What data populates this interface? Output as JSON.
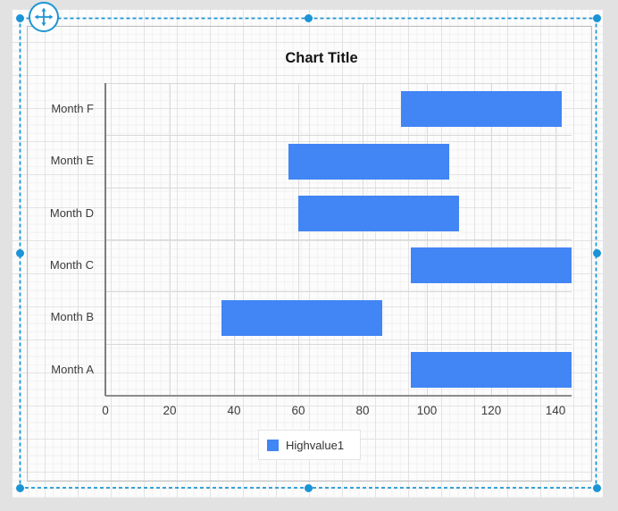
{
  "chart_data": {
    "type": "bar",
    "subtype": "horizontal-range-bar",
    "title": "Chart Title",
    "categories_top_to_bottom": [
      "Month F",
      "Month E",
      "Month D",
      "Month C",
      "Month B",
      "Month A"
    ],
    "series": [
      {
        "name": "Highvalue1",
        "color": "#4285f4",
        "low": [
          92,
          57,
          60,
          95,
          36,
          95
        ],
        "high": [
          142,
          107,
          110,
          145,
          86,
          145
        ]
      }
    ],
    "x_axis": {
      "min": 0,
      "max": 145,
      "tick_interval": 20,
      "tick_labels": [
        "0",
        "20",
        "40",
        "60",
        "80",
        "100",
        "120",
        "140"
      ]
    },
    "y_axis": {
      "labels_top_to_bottom": [
        "Month F",
        "Month E",
        "Month D",
        "Month C",
        "Month B",
        "Month A"
      ]
    },
    "grid": true,
    "legend_position": "bottom"
  },
  "designer": {
    "selection_color": "#1e95d4",
    "handle_color": "#1b94d6",
    "gridline_color": "#dadada",
    "bar_color": "#4285f4"
  }
}
